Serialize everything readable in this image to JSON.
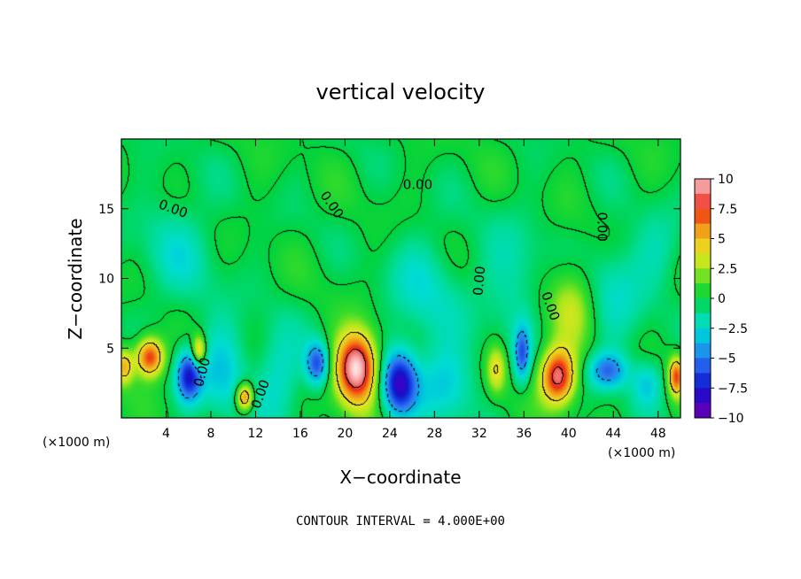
{
  "chart_data": {
    "type": "heatmap",
    "title": "vertical velocity",
    "xlabel": "X−coordinate",
    "ylabel": "Z−coordinate",
    "x_unit_left": "(×1000 m)",
    "x_unit_right": "(×1000 m)",
    "xlim": [
      0,
      50
    ],
    "ylim": [
      0,
      20
    ],
    "x_ticks": [
      4,
      8,
      12,
      16,
      20,
      24,
      28,
      32,
      36,
      40,
      44,
      48
    ],
    "y_ticks": [
      5,
      10,
      15
    ],
    "colorbar": {
      "range": [
        -10,
        10
      ],
      "ticks": [
        "10",
        "7.5",
        "5",
        "2.5",
        "0",
        "−2.5",
        "−5",
        "−7.5",
        "−10"
      ],
      "tick_values": [
        10,
        7.5,
        5,
        2.5,
        0,
        -2.5,
        -5,
        -7.5,
        -10
      ]
    },
    "contour_interval_text": "CONTOUR INTERVAL = 4.000E+00",
    "contour_labels": [
      {
        "text": "0.00",
        "x": 4.5,
        "y": 14.7,
        "angle": 20
      },
      {
        "text": "0.00",
        "x": 7.6,
        "y": 3.2,
        "angle": -75
      },
      {
        "text": "0.00",
        "x": 12.8,
        "y": 1.6,
        "angle": -70
      },
      {
        "text": "0.00",
        "x": 18.5,
        "y": 15.1,
        "angle": 55
      },
      {
        "text": "0.00",
        "x": 26.5,
        "y": 16.4,
        "angle": 0
      },
      {
        "text": "0.00",
        "x": 32.4,
        "y": 9.8,
        "angle": -85
      },
      {
        "text": "0.00",
        "x": 38.0,
        "y": 7.9,
        "angle": 70
      },
      {
        "text": "0.00",
        "x": 42.6,
        "y": 13.7,
        "angle": 90
      }
    ],
    "features": [
      {
        "x": 2.5,
        "z": 4.4,
        "w": 8,
        "sx": 0.9,
        "sz": 1.0
      },
      {
        "x": 0.2,
        "z": 3.7,
        "w": 5,
        "sx": 0.6,
        "sz": 0.9
      },
      {
        "x": 6.0,
        "z": 3.0,
        "w": -7,
        "sx": 0.8,
        "sz": 1.3
      },
      {
        "x": 6.9,
        "z": 4.8,
        "w": 6,
        "sx": 0.45,
        "sz": 0.8
      },
      {
        "x": 11.0,
        "z": 1.5,
        "w": 7,
        "sx": 0.55,
        "sz": 0.7
      },
      {
        "x": 17.5,
        "z": 3.9,
        "w": -6,
        "sx": 0.75,
        "sz": 1.1
      },
      {
        "x": 21.0,
        "z": 3.6,
        "w": 11,
        "sx": 1.3,
        "sz": 1.8
      },
      {
        "x": 24.8,
        "z": 2.5,
        "w": -8,
        "sx": 1.1,
        "sz": 1.6
      },
      {
        "x": 29.0,
        "z": 2.5,
        "w": -3,
        "sx": 1.8,
        "sz": 2.0
      },
      {
        "x": 33.5,
        "z": 3.5,
        "w": 4,
        "sx": 0.6,
        "sz": 1.2
      },
      {
        "x": 35.8,
        "z": 4.6,
        "w": -5,
        "sx": 0.5,
        "sz": 1.4
      },
      {
        "x": 39.0,
        "z": 3.0,
        "w": 9,
        "sx": 1.1,
        "sz": 1.4
      },
      {
        "x": 40.3,
        "z": 8.2,
        "w": 3,
        "sx": 1.5,
        "sz": 2.2
      },
      {
        "x": 43.5,
        "z": 3.4,
        "w": -5,
        "sx": 1.2,
        "sz": 0.9
      },
      {
        "x": 47.0,
        "z": 2.5,
        "w": -3,
        "sx": 1.0,
        "sz": 1.2
      },
      {
        "x": 49.6,
        "z": 3.0,
        "w": 7,
        "sx": 0.5,
        "sz": 1.0
      },
      {
        "x": 9.0,
        "z": 3.5,
        "w": -3,
        "sx": 1.5,
        "sz": 2.5
      },
      {
        "x": 14.0,
        "z": 3.0,
        "w": -2.5,
        "sx": 1.5,
        "sz": 2.5
      },
      {
        "x": 27.0,
        "z": 9.0,
        "w": -2,
        "sx": 2.5,
        "sz": 3.0
      },
      {
        "x": 44.0,
        "z": 9.0,
        "w": -2,
        "sx": 2.0,
        "sz": 3.0
      },
      {
        "x": 5.0,
        "z": 12.0,
        "w": -1.8,
        "sx": 2.5,
        "sz": 3.0
      },
      {
        "x": 35.0,
        "z": 10.0,
        "w": -1.8,
        "sx": 2.0,
        "sz": 3.0
      },
      {
        "x": 48.0,
        "z": 12.0,
        "w": -1.5,
        "sx": 1.5,
        "sz": 2.0
      }
    ]
  }
}
